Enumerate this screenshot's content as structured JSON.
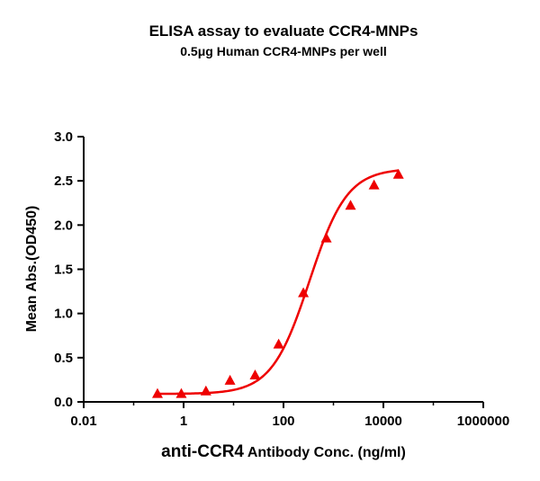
{
  "chart_data": {
    "type": "scatter",
    "title": "ELISA assay to evaluate CCR4-MNPs",
    "subtitle": "0.5μg Human CCR4-MNPs per well",
    "xlabel_main": "anti-CCR4",
    "xlabel_rest": " Antibody Conc. (ng/ml)",
    "ylabel": "Mean Abs.(OD450)",
    "xscale": "log10",
    "xlim": [
      0.01,
      1000000
    ],
    "ylim": [
      0,
      3.0
    ],
    "x_ticks": [
      0.01,
      1,
      100,
      10000,
      1000000
    ],
    "x_tick_labels": [
      "0.01",
      "1",
      "100",
      "10000",
      "1000000"
    ],
    "y_ticks": [
      0.0,
      0.5,
      1.0,
      1.5,
      2.0,
      2.5,
      3.0
    ],
    "y_tick_labels": [
      "0.0",
      "0.5",
      "1.0",
      "1.5",
      "2.0",
      "2.5",
      "3.0"
    ],
    "series": [
      {
        "name": "anti-CCR4",
        "color": "#ee0000",
        "marker": "triangle",
        "x": [
          0.3,
          0.9,
          2.8,
          8.5,
          27,
          80,
          250,
          720,
          2200,
          6500,
          20000
        ],
        "y": [
          0.09,
          0.09,
          0.12,
          0.24,
          0.3,
          0.65,
          1.23,
          1.85,
          2.22,
          2.45,
          2.57
        ]
      }
    ],
    "fit": {
      "model": "4PL",
      "bottom": 0.09,
      "top": 2.64,
      "ec50": 330,
      "hill": 1.15,
      "x_range": [
        0.3,
        20000
      ]
    }
  }
}
